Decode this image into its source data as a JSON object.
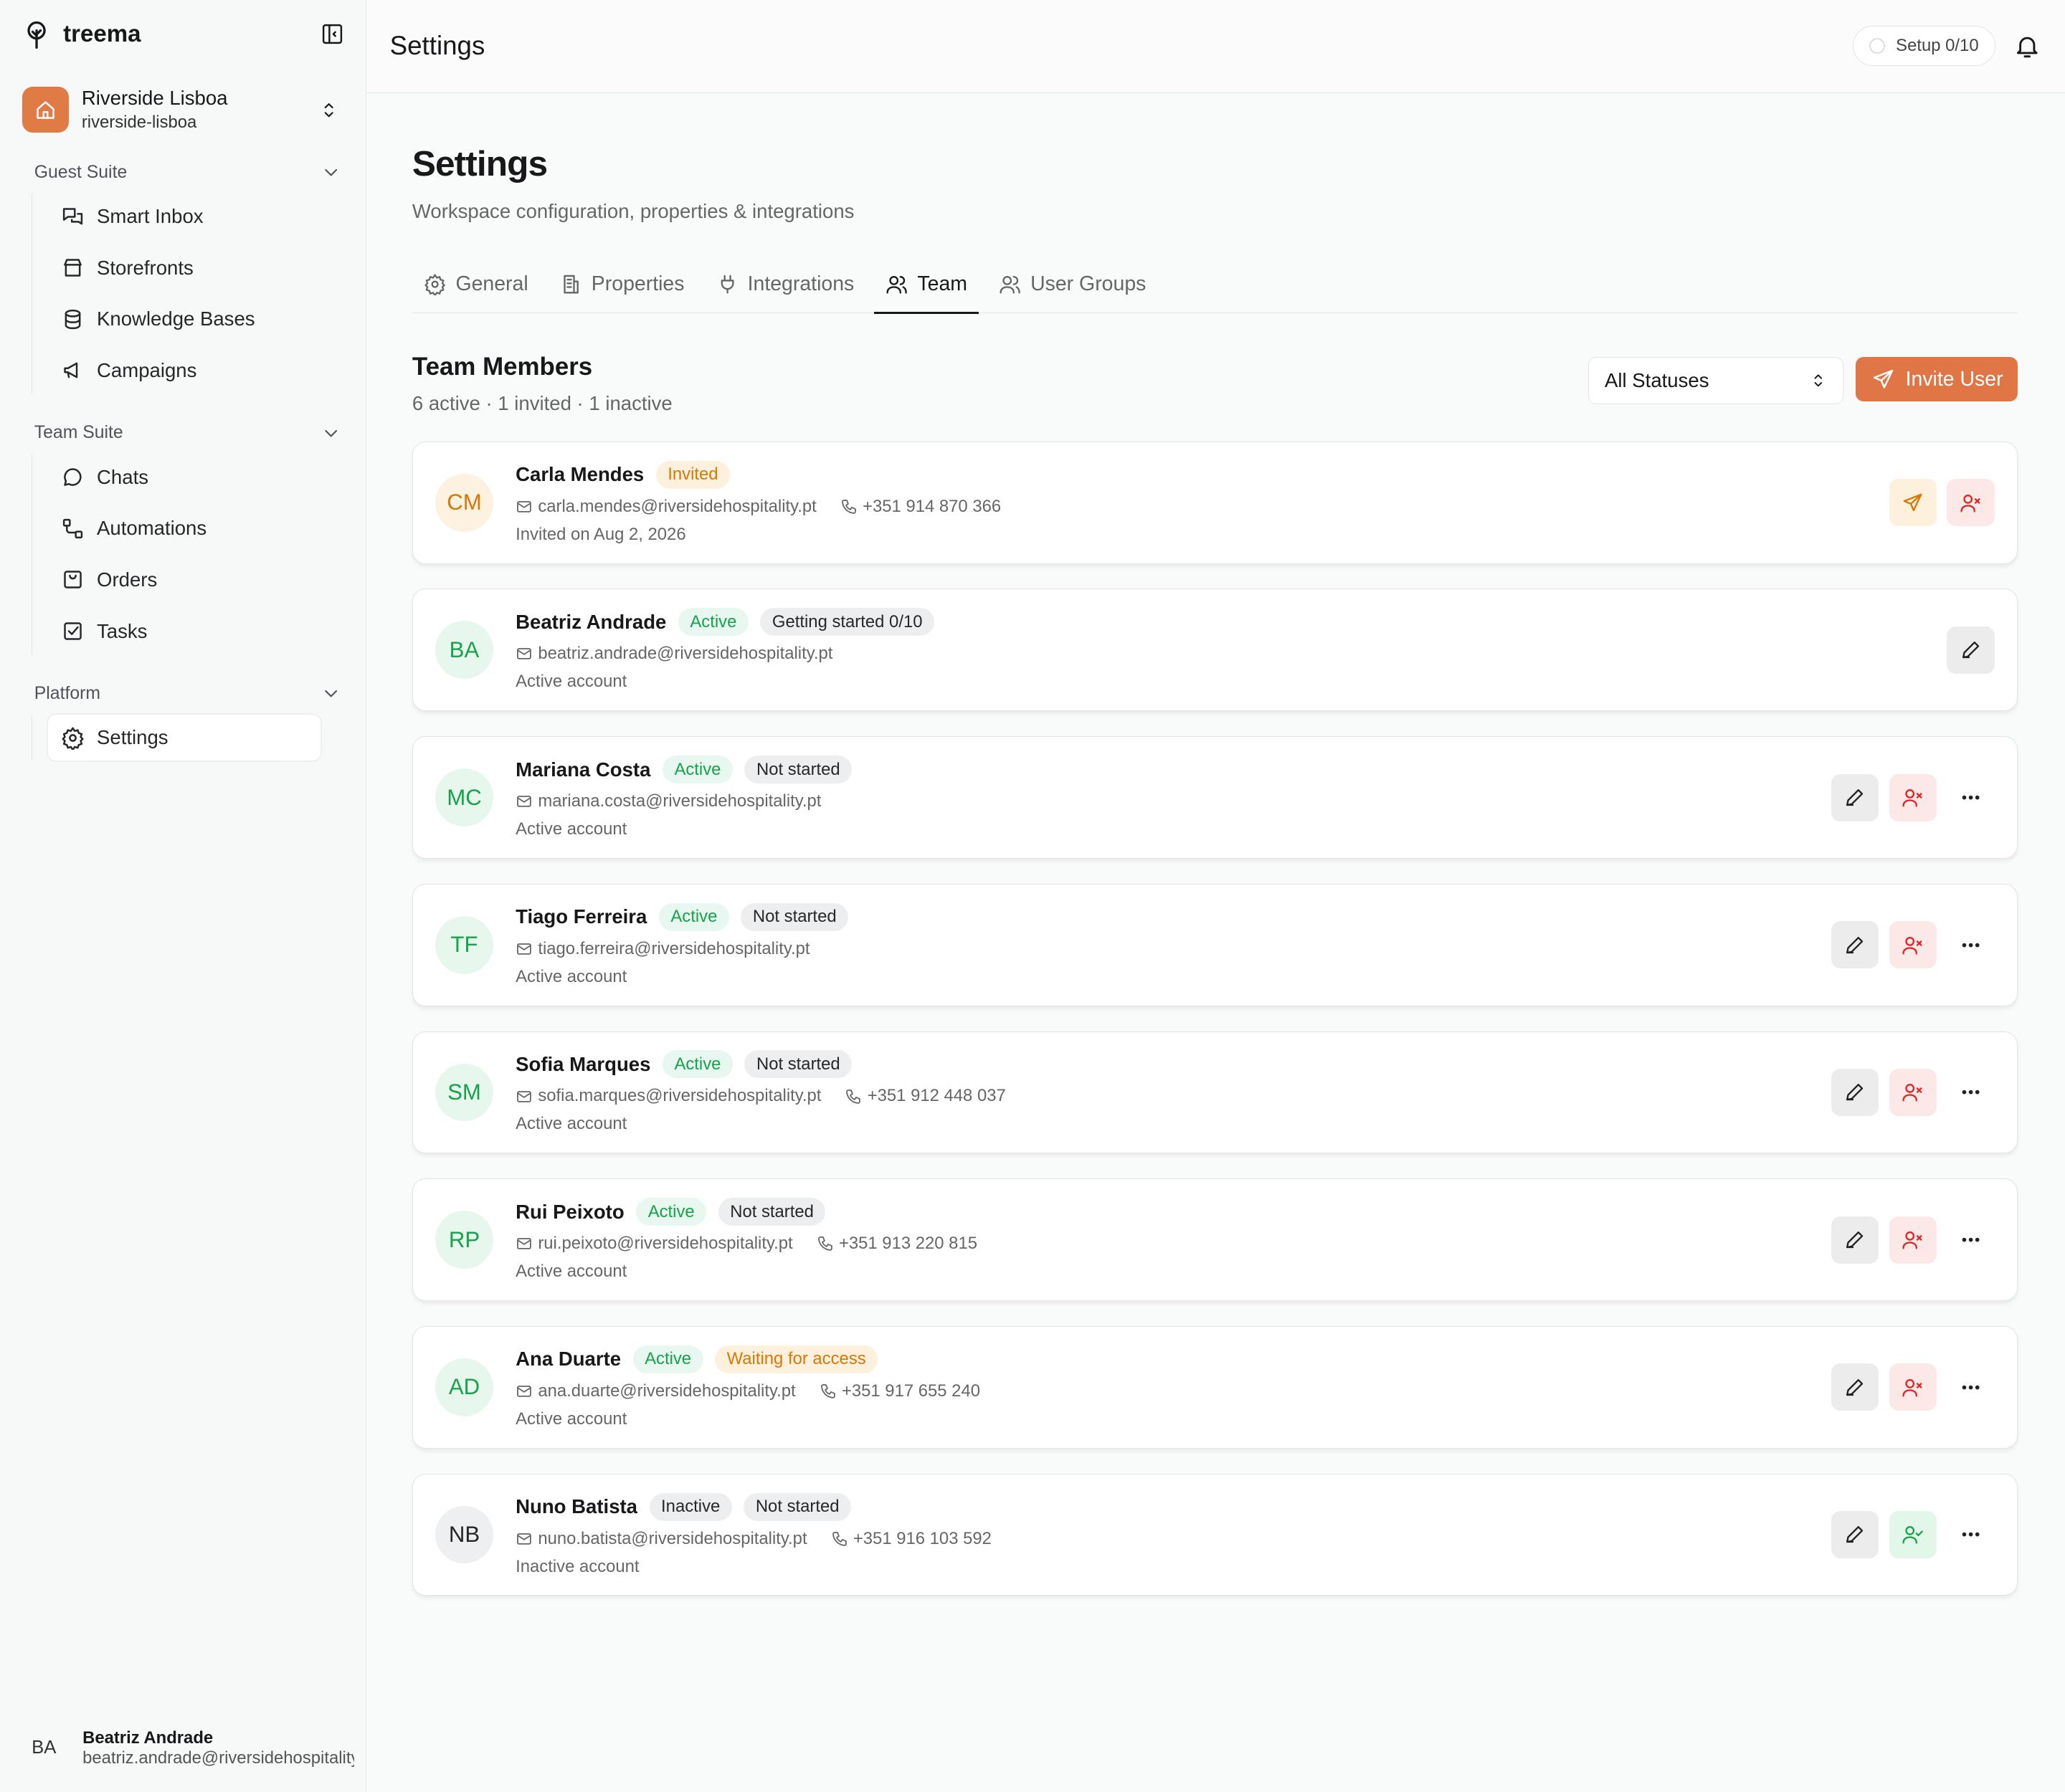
{
  "sidebar": {
    "brand": "treema",
    "workspace": {
      "name": "Riverside Lisboa",
      "slug": "riverside-lisboa"
    },
    "sections": [
      {
        "title": "Guest Suite",
        "items": [
          {
            "label": "Smart Inbox",
            "icon": "inbox"
          },
          {
            "label": "Storefronts",
            "icon": "store"
          },
          {
            "label": "Knowledge Bases",
            "icon": "db"
          },
          {
            "label": "Campaigns",
            "icon": "mega"
          }
        ]
      },
      {
        "title": "Team Suite",
        "items": [
          {
            "label": "Chats",
            "icon": "chat"
          },
          {
            "label": "Automations",
            "icon": "flow"
          },
          {
            "label": "Orders",
            "icon": "bag"
          },
          {
            "label": "Tasks",
            "icon": "check"
          }
        ]
      },
      {
        "title": "Platform",
        "items": [
          {
            "label": "Settings",
            "icon": "gear",
            "active": true
          }
        ]
      }
    ],
    "user": {
      "initials": "BA",
      "name": "Beatriz Andrade",
      "email": "beatriz.andrade@riversidehospitality.pt"
    }
  },
  "header": {
    "title": "Settings",
    "setup": "Setup 0/10"
  },
  "page": {
    "title": "Settings",
    "subtitle": "Workspace configuration, properties & integrations",
    "tabs": [
      {
        "label": "General",
        "icon": "gear"
      },
      {
        "label": "Properties",
        "icon": "building"
      },
      {
        "label": "Integrations",
        "icon": "plug"
      },
      {
        "label": "Team",
        "icon": "users",
        "active": true
      },
      {
        "label": "User Groups",
        "icon": "users"
      }
    ],
    "section_title": "Team Members",
    "summary": "6 active · 1 invited · 1 inactive",
    "filter": "All Statuses",
    "invite": "Invite User"
  },
  "members": [
    {
      "initials": "CM",
      "tone": "orange",
      "name": "Carla Mendes",
      "badges": [
        {
          "text": "Invited",
          "tone": "orange"
        }
      ],
      "email": "carla.mendes@riversidehospitality.pt",
      "phone": "+351 914 870 366",
      "note": "Invited on Aug 2, 2026",
      "actions": [
        "resend",
        "remove"
      ]
    },
    {
      "initials": "BA",
      "tone": "green",
      "name": "Beatriz Andrade",
      "badges": [
        {
          "text": "Active",
          "tone": "green"
        },
        {
          "text": "Getting started 0/10",
          "tone": "gray"
        }
      ],
      "email": "beatriz.andrade@riversidehospitality.pt",
      "note": "Active account",
      "actions": [
        "edit"
      ]
    },
    {
      "initials": "MC",
      "tone": "green",
      "name": "Mariana Costa",
      "badges": [
        {
          "text": "Active",
          "tone": "green"
        },
        {
          "text": "Not started",
          "tone": "gray"
        }
      ],
      "email": "mariana.costa@riversidehospitality.pt",
      "note": "Active account",
      "actions": [
        "edit",
        "remove",
        "more"
      ]
    },
    {
      "initials": "TF",
      "tone": "green",
      "name": "Tiago Ferreira",
      "badges": [
        {
          "text": "Active",
          "tone": "green"
        },
        {
          "text": "Not started",
          "tone": "gray"
        }
      ],
      "email": "tiago.ferreira@riversidehospitality.pt",
      "note": "Active account",
      "actions": [
        "edit",
        "remove",
        "more"
      ]
    },
    {
      "initials": "SM",
      "tone": "green",
      "name": "Sofia Marques",
      "badges": [
        {
          "text": "Active",
          "tone": "green"
        },
        {
          "text": "Not started",
          "tone": "gray"
        }
      ],
      "email": "sofia.marques@riversidehospitality.pt",
      "phone": "+351 912 448 037",
      "note": "Active account",
      "actions": [
        "edit",
        "remove",
        "more"
      ]
    },
    {
      "initials": "RP",
      "tone": "green",
      "name": "Rui Peixoto",
      "badges": [
        {
          "text": "Active",
          "tone": "green"
        },
        {
          "text": "Not started",
          "tone": "gray"
        }
      ],
      "email": "rui.peixoto@riversidehospitality.pt",
      "phone": "+351 913 220 815",
      "note": "Active account",
      "actions": [
        "edit",
        "remove",
        "more"
      ]
    },
    {
      "initials": "AD",
      "tone": "green",
      "name": "Ana Duarte",
      "badges": [
        {
          "text": "Active",
          "tone": "green"
        },
        {
          "text": "Waiting for access",
          "tone": "orange"
        }
      ],
      "email": "ana.duarte@riversidehospitality.pt",
      "phone": "+351 917 655 240",
      "note": "Active account",
      "actions": [
        "edit",
        "remove",
        "more"
      ]
    },
    {
      "initials": "NB",
      "tone": "gray",
      "name": "Nuno Batista",
      "badges": [
        {
          "text": "Inactive",
          "tone": "gray"
        },
        {
          "text": "Not started",
          "tone": "gray"
        }
      ],
      "email": "nuno.batista@riversidehospitality.pt",
      "phone": "+351 916 103 592",
      "note": "Inactive account",
      "actions": [
        "edit",
        "activate",
        "more"
      ]
    }
  ]
}
